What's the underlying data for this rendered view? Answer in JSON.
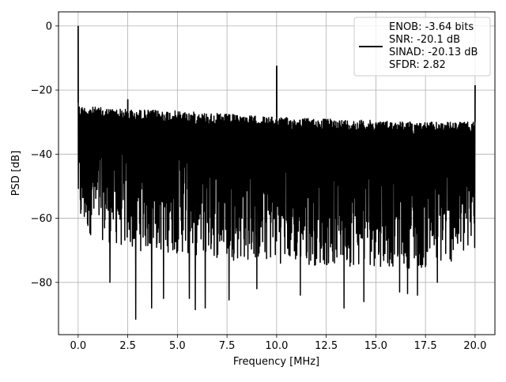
{
  "chart_data": {
    "type": "line",
    "title": "",
    "xlabel": "Frequency [MHz]",
    "ylabel": "PSD [dB]",
    "xlim": [
      -0.99,
      21.0
    ],
    "ylim": [
      -96.3,
      4.4
    ],
    "x_ticks": [
      0.0,
      2.5,
      5.0,
      7.5,
      10.0,
      12.5,
      15.0,
      17.5,
      20.0
    ],
    "x_tick_labels": [
      "0.0",
      "2.5",
      "5.0",
      "7.5",
      "10.0",
      "12.5",
      "15.0",
      "17.5",
      "20.0"
    ],
    "y_ticks": [
      0,
      -20,
      -40,
      -60,
      -80
    ],
    "y_tick_labels": [
      "0",
      "−20",
      "−40",
      "−60",
      "−80"
    ],
    "grid": true,
    "legend_position": "upper right",
    "series": [
      {
        "color": "#000000",
        "x_range": [
          0,
          20
        ],
        "num_points": 2000,
        "noise_upper_envelope": {
          "x": [
            0,
            0.1,
            2.5,
            5,
            7.5,
            10,
            12.5,
            15,
            17.5,
            20
          ],
          "y": [
            -24,
            -25,
            -26,
            -26.5,
            -27.5,
            -28.5,
            -29,
            -29.5,
            -30,
            -30
          ]
        },
        "noise_lower_envelope": {
          "x": [
            0,
            0.1,
            2.5,
            5,
            7.5,
            10,
            12.5,
            15,
            17.5,
            20
          ],
          "y": [
            -58,
            -64,
            -70,
            -71,
            -73,
            -74,
            -75,
            -75,
            -76,
            -72
          ]
        },
        "noise_minima": [
          {
            "x": 1.6,
            "y": -80
          },
          {
            "x": 2.5,
            "y": -83
          },
          {
            "x": 2.9,
            "y": -91.5
          },
          {
            "x": 3.7,
            "y": -88
          },
          {
            "x": 4.3,
            "y": -85
          },
          {
            "x": 5.6,
            "y": -85
          },
          {
            "x": 5.9,
            "y": -88.5
          },
          {
            "x": 6.4,
            "y": -88
          },
          {
            "x": 7.6,
            "y": -85.5
          },
          {
            "x": 9.0,
            "y": -82
          },
          {
            "x": 11.2,
            "y": -84
          },
          {
            "x": 13.4,
            "y": -88
          },
          {
            "x": 14.4,
            "y": -86
          },
          {
            "x": 16.2,
            "y": -83
          },
          {
            "x": 16.6,
            "y": -83.5
          },
          {
            "x": 17.1,
            "y": -84
          },
          {
            "x": 18.1,
            "y": -80
          }
        ],
        "peaks": [
          {
            "x": 0.0,
            "y": 0
          },
          {
            "x": 2.5,
            "y": -23
          },
          {
            "x": 10.0,
            "y": -12.5
          },
          {
            "x": 20.0,
            "y": -18.5
          }
        ]
      }
    ],
    "legend": {
      "lines": [
        "ENOB: -3.64 bits",
        "SNR: -20.1 dB",
        "SINAD: -20.13 dB",
        "SFDR: 2.82"
      ]
    }
  }
}
